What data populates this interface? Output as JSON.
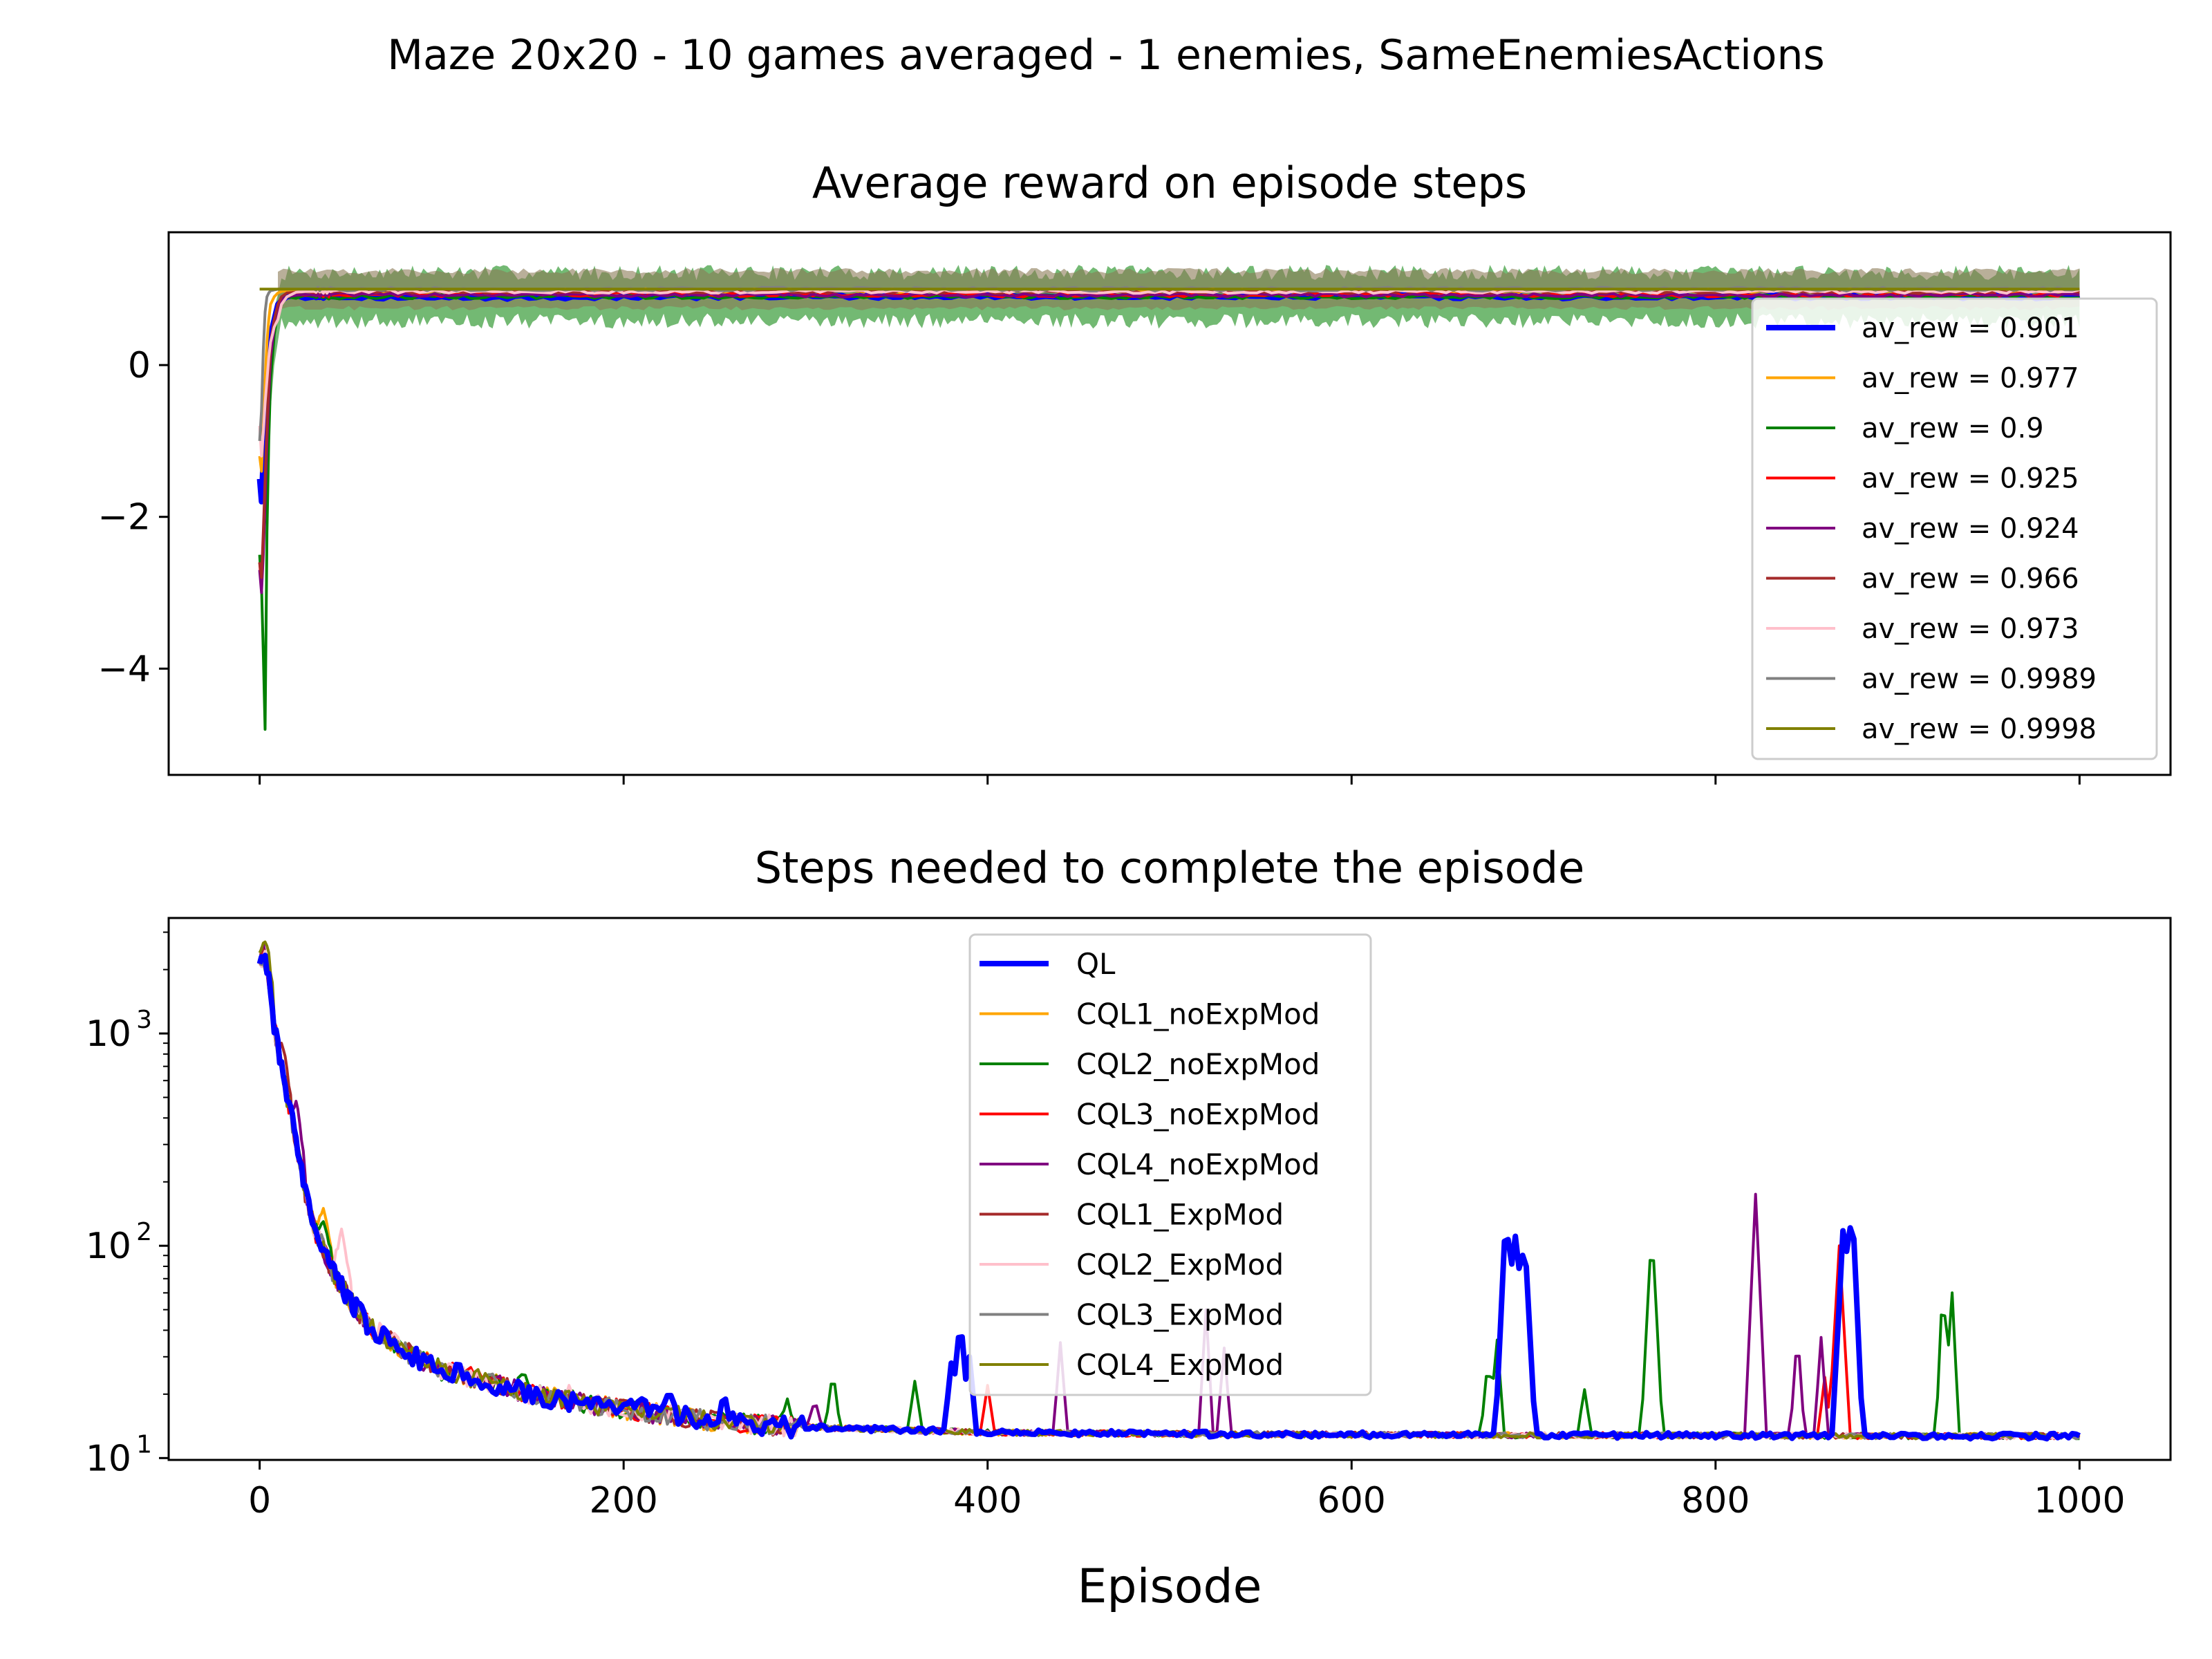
{
  "figure": {
    "suptitle": "Maze 20x20 - 10 games averaged - 1 enemies, SameEnemiesActions",
    "xlabel": "Episode"
  },
  "colors": {
    "QL": "#0000ff",
    "CQL1_noExpMod": "#ffa500",
    "CQL2_noExpMod": "#008000",
    "CQL3_noExpMod": "#ff0000",
    "CQL4_noExpMod": "#800080",
    "CQL1_ExpMod": "#a52a2a",
    "CQL2_ExpMod": "#ffc0cb",
    "CQL3_ExpMod": "#808080",
    "CQL4_ExpMod": "#808000"
  },
  "chart_data": [
    {
      "type": "line",
      "title": "Average reward on episode steps",
      "xlabel": "",
      "ylabel": "",
      "xlim": [
        -50,
        1050
      ],
      "ylim": [
        -5.4,
        1.75
      ],
      "xticks": [
        0,
        200,
        400,
        600,
        800,
        1000
      ],
      "xtick_labels_visible": false,
      "yticks": [
        0,
        -2,
        -4
      ],
      "ytick_labels": [
        "0",
        "−2",
        "−4"
      ],
      "grid": false,
      "legend_position": "right",
      "x": [
        0,
        1,
        2,
        3,
        4,
        5,
        6,
        8,
        10,
        12,
        15,
        20,
        25,
        30,
        40,
        60,
        100,
        200,
        400,
        600,
        800,
        1000
      ],
      "series": [
        {
          "name": "av_rew = 0.901",
          "key": "QL",
          "mean": 0.901,
          "values": [
            -1.5,
            -1.8,
            -1.2,
            -0.6,
            -0.2,
            0.2,
            0.4,
            0.6,
            0.8,
            0.85,
            0.9,
            0.92,
            0.88,
            0.9,
            0.91,
            0.9,
            0.89,
            0.9,
            0.91,
            0.9,
            0.9,
            0.9
          ]
        },
        {
          "name": "av_rew = 0.977",
          "key": "CQL1_noExpMod",
          "mean": 0.977,
          "values": [
            -1.2,
            -1.4,
            -0.8,
            -0.2,
            0.3,
            0.6,
            0.8,
            0.9,
            0.95,
            0.97,
            0.98,
            0.97,
            0.98,
            0.98,
            0.97,
            0.98,
            0.98,
            0.98,
            0.98,
            0.98,
            0.98,
            0.98
          ]
        },
        {
          "name": "av_rew = 0.9",
          "key": "CQL2_noExpMod",
          "mean": 0.9,
          "values": [
            -2.5,
            -2.9,
            -3.8,
            -4.8,
            -2.2,
            -1.0,
            -0.2,
            0.4,
            0.7,
            0.85,
            0.9,
            0.88,
            0.92,
            0.9,
            0.89,
            0.9,
            0.9,
            0.9,
            0.9,
            0.9,
            0.9,
            0.9
          ]
        },
        {
          "name": "av_rew = 0.925",
          "key": "CQL3_noExpMod",
          "mean": 0.925,
          "values": [
            -2.6,
            -2.9,
            -2.4,
            -1.6,
            -0.9,
            -0.3,
            0.2,
            0.5,
            0.7,
            0.85,
            0.9,
            0.93,
            0.92,
            0.93,
            0.92,
            0.93,
            0.92,
            0.93,
            0.92,
            0.93,
            0.92,
            0.93
          ]
        },
        {
          "name": "av_rew = 0.924",
          "key": "CQL4_noExpMod",
          "mean": 0.924,
          "values": [
            -2.7,
            -3.0,
            -2.5,
            -1.8,
            -1.0,
            -0.4,
            0.1,
            0.5,
            0.7,
            0.85,
            0.9,
            0.92,
            0.93,
            0.92,
            0.93,
            0.92,
            0.93,
            0.92,
            0.92,
            0.92,
            0.92,
            0.92
          ]
        },
        {
          "name": "av_rew = 0.966",
          "key": "CQL1_ExpMod",
          "mean": 0.966,
          "values": [
            -2.6,
            -2.8,
            -2.2,
            -1.5,
            -0.8,
            -0.2,
            0.3,
            0.6,
            0.8,
            0.9,
            0.95,
            0.96,
            0.97,
            0.96,
            0.97,
            0.96,
            0.97,
            0.97,
            0.97,
            0.97,
            0.97,
            0.97
          ]
        },
        {
          "name": "av_rew = 0.973",
          "key": "CQL2_ExpMod",
          "mean": 0.973,
          "values": [
            -0.8,
            -1.2,
            -0.9,
            -0.5,
            -0.2,
            0.1,
            0.3,
            0.5,
            0.6,
            0.8,
            0.9,
            0.96,
            0.97,
            0.97,
            0.97,
            0.97,
            0.97,
            0.97,
            0.97,
            0.97,
            0.97,
            0.97
          ]
        },
        {
          "name": "av_rew = 0.9989",
          "key": "CQL3_ExpMod",
          "mean": 0.9989,
          "values": [
            -1.0,
            -0.6,
            0.2,
            0.7,
            0.9,
            0.95,
            0.98,
            0.99,
            1.0,
            1.0,
            1.0,
            1.0,
            1.0,
            1.0,
            1.0,
            1.0,
            1.0,
            1.0,
            1.0,
            1.0,
            1.0,
            1.0
          ]
        },
        {
          "name": "av_rew = 0.9998",
          "key": "CQL4_ExpMod",
          "mean": 0.9998,
          "values": [
            1.0,
            1.0,
            1.0,
            1.0,
            1.0,
            1.0,
            1.0,
            1.0,
            1.0,
            1.0,
            1.0,
            1.0,
            1.0,
            1.0,
            1.0,
            1.0,
            1.0,
            1.0,
            1.0,
            1.0,
            1.0,
            1.0
          ]
        }
      ]
    },
    {
      "type": "line",
      "title": "Steps needed to complete the episode",
      "xlabel": "Episode",
      "ylabel": "",
      "yscale": "log",
      "xlim": [
        -50,
        1050
      ],
      "ylim": [
        9.8,
        3500
      ],
      "xticks": [
        0,
        200,
        400,
        600,
        800,
        1000
      ],
      "xtick_labels": [
        "0",
        "200",
        "400",
        "600",
        "800",
        "1000"
      ],
      "yticks": [
        10,
        100,
        1000
      ],
      "ytick_labels": [
        {
          "base": "10",
          "exp": "1"
        },
        {
          "base": "10",
          "exp": "2"
        },
        {
          "base": "10",
          "exp": "3"
        }
      ],
      "grid": false,
      "legend_position": "top-center",
      "x": [
        0,
        2,
        4,
        6,
        8,
        10,
        15,
        20,
        25,
        30,
        40,
        50,
        60,
        80,
        100,
        150,
        200,
        250,
        300,
        400,
        500,
        600,
        700,
        800,
        900,
        1000
      ],
      "baseline": [
        2200,
        2400,
        2000,
        1500,
        1100,
        850,
        500,
        300,
        180,
        120,
        75,
        55,
        42,
        32,
        26,
        20,
        17,
        15,
        14,
        13.2,
        13,
        12.9,
        12.8,
        12.8,
        12.7,
        12.7
      ],
      "series": [
        {
          "name": "QL",
          "key": "QL",
          "spikes": [
            [
              210,
              19
            ],
            [
              225,
              21
            ],
            [
              255,
              20
            ],
            [
              380,
              28
            ],
            [
              385,
              52
            ],
            [
              390,
              30
            ],
            [
              685,
              160
            ],
            [
              690,
              110
            ],
            [
              695,
              115
            ],
            [
              870,
              110
            ],
            [
              875,
              165
            ]
          ]
        },
        {
          "name": "CQL1_noExpMod",
          "key": "CQL1_noExpMod",
          "spikes": [
            [
              35,
              150
            ]
          ]
        },
        {
          "name": "CQL2_noExpMod",
          "key": "CQL2_noExpMod",
          "spikes": [
            [
              35,
              130
            ],
            [
              145,
              26
            ],
            [
              290,
              19
            ],
            [
              315,
              26
            ],
            [
              360,
              23
            ],
            [
              675,
              30
            ],
            [
              680,
              36
            ],
            [
              728,
              21
            ],
            [
              765,
              125
            ],
            [
              925,
              73
            ],
            [
              930,
              60
            ]
          ]
        },
        {
          "name": "CQL3_noExpMod",
          "key": "CQL3_noExpMod",
          "spikes": [
            [
              120,
              26
            ],
            [
              400,
              22
            ],
            [
              860,
              24
            ],
            [
              868,
              100
            ]
          ]
        },
        {
          "name": "CQL4_noExpMod",
          "key": "CQL4_noExpMod",
          "spikes": [
            [
              20,
              480
            ],
            [
              305,
              19
            ],
            [
              440,
              35
            ],
            [
              520,
              50
            ],
            [
              530,
              33
            ],
            [
              822,
              175
            ],
            [
              845,
              40
            ],
            [
              858,
              37
            ]
          ]
        },
        {
          "name": "CQL1_ExpMod",
          "key": "CQL1_ExpMod",
          "spikes": [
            [
              12,
              900
            ],
            [
              30,
              65
            ]
          ]
        },
        {
          "name": "CQL2_ExpMod",
          "key": "CQL2_ExpMod",
          "spikes": [
            [
              45,
              120
            ],
            [
              90,
              30
            ],
            [
              170,
              22
            ]
          ]
        },
        {
          "name": "CQL3_ExpMod",
          "key": "CQL3_ExpMod",
          "spikes": []
        },
        {
          "name": "CQL4_ExpMod",
          "key": "CQL4_ExpMod",
          "spikes": [
            [
              3,
              2700
            ]
          ]
        }
      ]
    }
  ]
}
